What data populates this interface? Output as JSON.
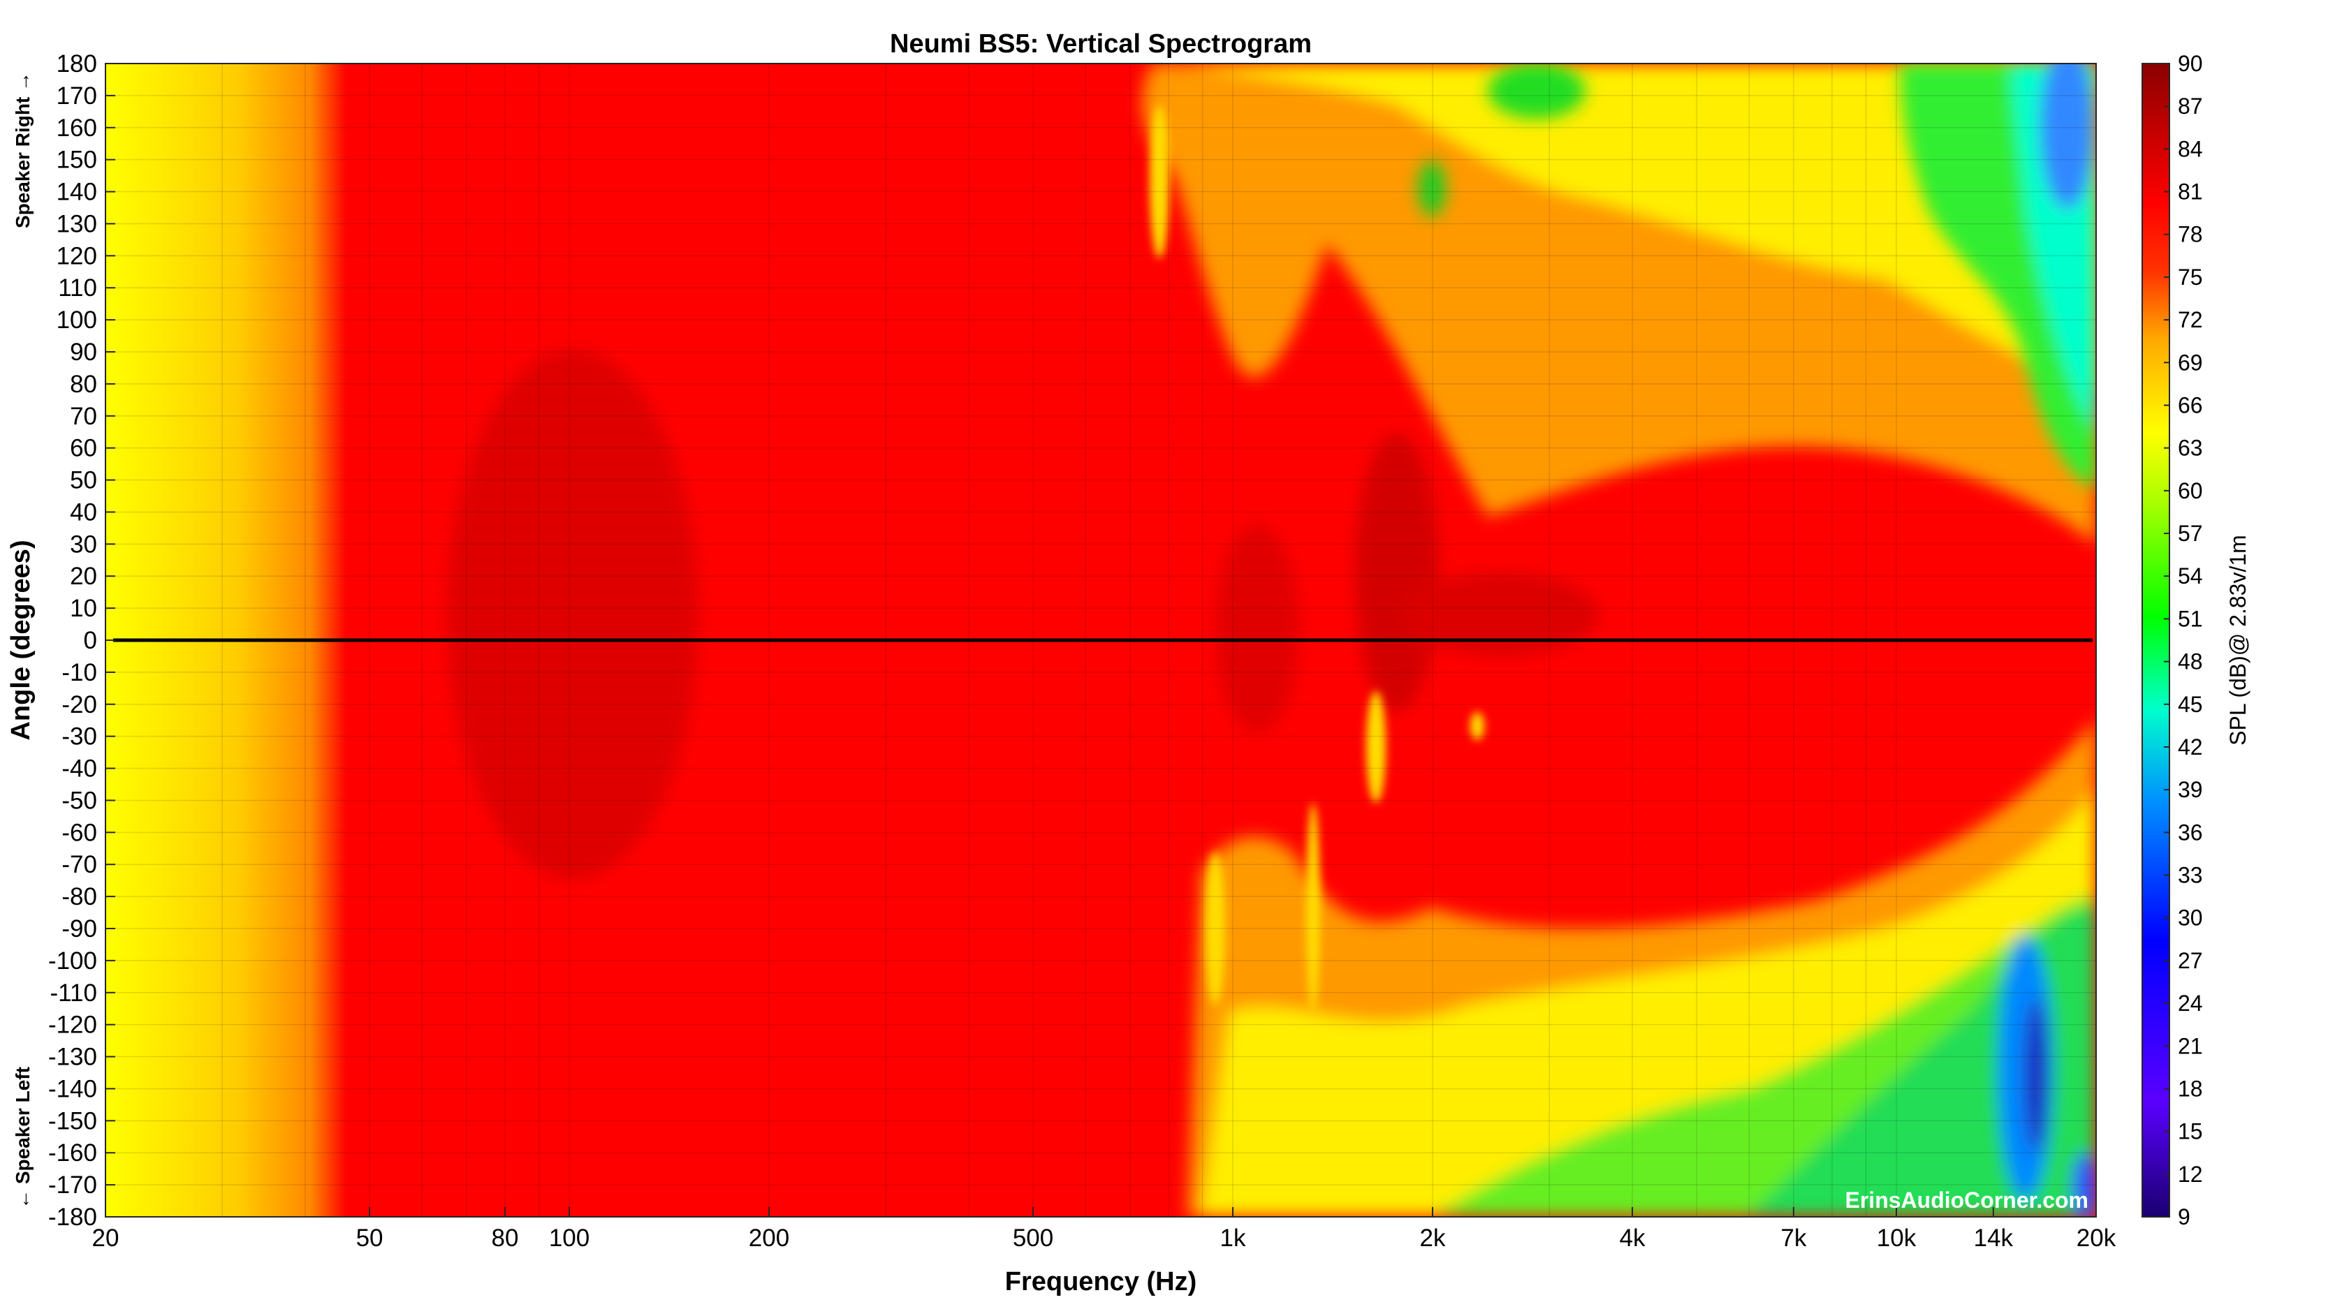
{
  "chart_data": {
    "type": "heatmap",
    "title": "Neumi BS5: Vertical Spectrogram",
    "xlabel": "Frequency (Hz)",
    "ylabel": "Angle (degrees)",
    "side_labels": {
      "top": "Speaker Right →",
      "bottom": "← Speaker Left"
    },
    "x_scale": "log",
    "xlim": [
      20,
      20000
    ],
    "x_ticks": [
      {
        "value": 20,
        "label": "20"
      },
      {
        "value": 50,
        "label": "50"
      },
      {
        "value": 80,
        "label": "80"
      },
      {
        "value": 100,
        "label": "100"
      },
      {
        "value": 200,
        "label": "200"
      },
      {
        "value": 500,
        "label": "500"
      },
      {
        "value": 1000,
        "label": "1k"
      },
      {
        "value": 2000,
        "label": "2k"
      },
      {
        "value": 4000,
        "label": "4k"
      },
      {
        "value": 7000,
        "label": "7k"
      },
      {
        "value": 10000,
        "label": "10k"
      },
      {
        "value": 14000,
        "label": "14k"
      },
      {
        "value": 20000,
        "label": "20k"
      }
    ],
    "ylim": [
      -180,
      180
    ],
    "y_ticks": [
      180,
      170,
      160,
      150,
      140,
      130,
      120,
      110,
      100,
      90,
      80,
      70,
      60,
      50,
      40,
      30,
      20,
      10,
      0,
      -10,
      -20,
      -30,
      -40,
      -50,
      -60,
      -70,
      -80,
      -90,
      -100,
      -110,
      -120,
      -130,
      -140,
      -150,
      -160,
      -170,
      -180
    ],
    "grid": true,
    "reference_line": {
      "angle": 0,
      "color": "#000000"
    },
    "colorbar": {
      "label": "SPL (dB)@ 2.83v/1m",
      "range": [
        9,
        90
      ],
      "ticks": [
        90,
        87,
        84,
        81,
        78,
        75,
        72,
        69,
        66,
        63,
        60,
        57,
        54,
        51,
        48,
        45,
        42,
        39,
        36,
        33,
        30,
        27,
        24,
        21,
        18,
        15,
        12,
        9
      ],
      "colormap": "jet-like (blue → green → yellow → red → dark red)"
    },
    "approx_levels_db": {
      "20-40Hz_all_angles": 60,
      "45Hz-700Hz_all_angles": 78,
      "on_axis_1k-20k": 76,
      "off_axis_above_1k": 62,
      "rear_above_10k": 45,
      "rear_14k-20k_min": 27
    }
  },
  "watermark": "ErinsAudioCorner.com",
  "colors": {
    "dark_red": "#8b0000",
    "red": "#ff0000",
    "orange": "#ff8c00",
    "yellow": "#ffff00",
    "green": "#00ff00",
    "cyan": "#00ffff",
    "blue": "#0000ff",
    "navy": "#1a0070",
    "reference_line": "#000000",
    "grid": "#7f7f7f"
  }
}
